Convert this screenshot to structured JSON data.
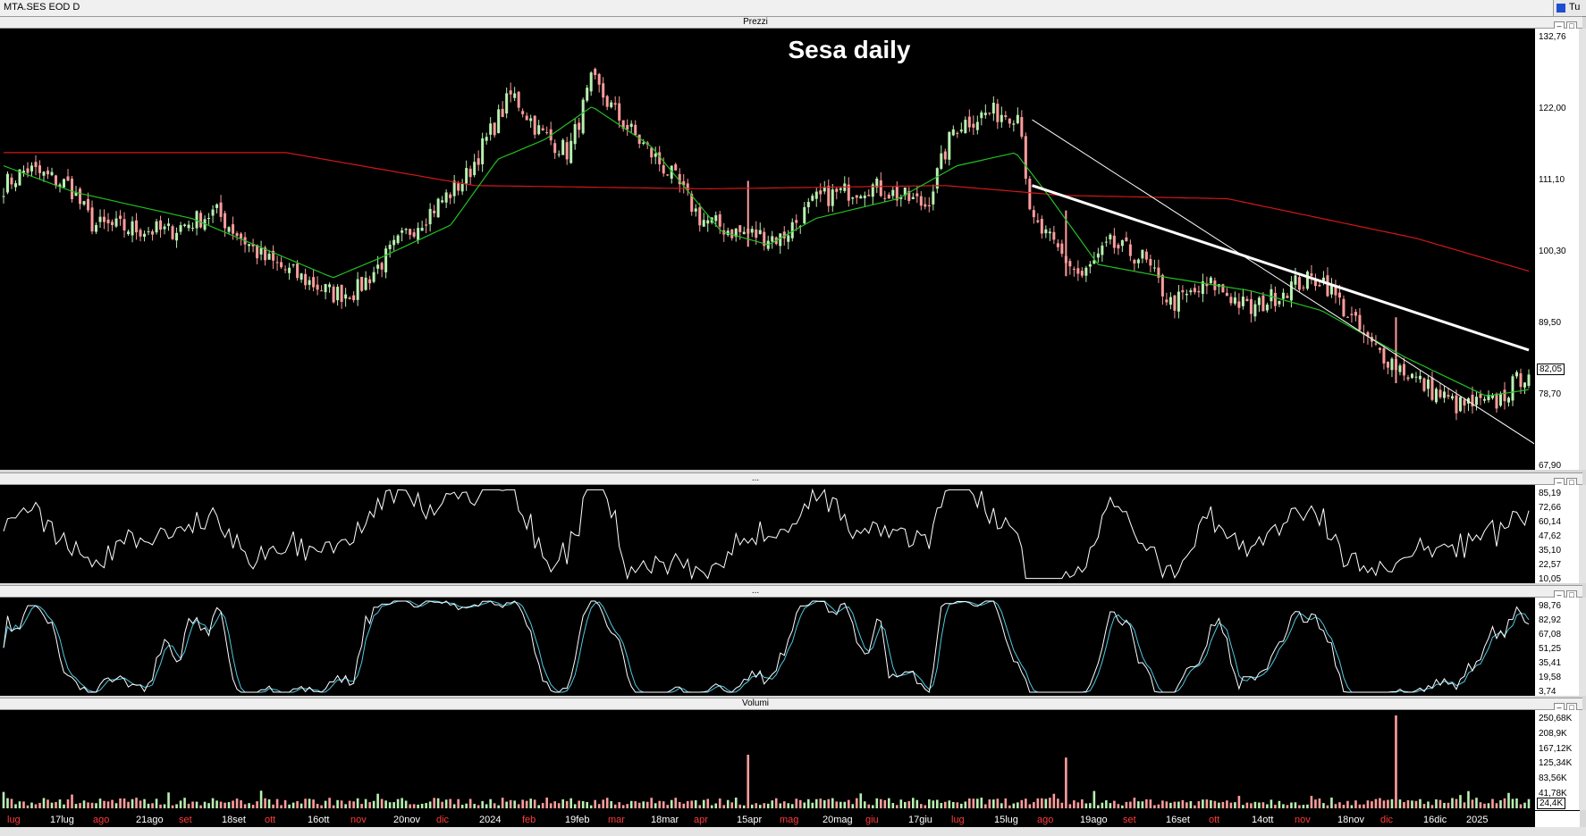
{
  "window": {
    "title": "MTA.SES EOD D",
    "corner_label": "Tu"
  },
  "chart_title": "Sesa daily",
  "panels": {
    "price": {
      "label": "Prezzi",
      "ticks": [
        "132,76",
        "122,00",
        "111,10",
        "100,30",
        "89,50",
        "78,70",
        "67,90"
      ],
      "last": "82,05"
    },
    "rsi": {
      "label": "...",
      "ticks": [
        "85,19",
        "72,66",
        "60,14",
        "47,62",
        "35,10",
        "22,57",
        "10,05"
      ]
    },
    "stoch": {
      "label": "...",
      "ticks": [
        "98,76",
        "82,92",
        "67,08",
        "51,25",
        "35,41",
        "19,58",
        "3,74"
      ]
    },
    "volume": {
      "label": "Volumi",
      "ticks": [
        "250,68K",
        "208,9K",
        "167,12K",
        "125,34K",
        "83,56K",
        "41,78K"
      ],
      "last": "24,4K"
    }
  },
  "xaxis_labels": [
    {
      "text": "lug",
      "color": "#ff3b3b"
    },
    {
      "text": "17lug",
      "color": "#ffffff"
    },
    {
      "text": "ago",
      "color": "#ff3b3b"
    },
    {
      "text": "21ago",
      "color": "#ffffff"
    },
    {
      "text": "set",
      "color": "#ff3b3b"
    },
    {
      "text": "18set",
      "color": "#ffffff"
    },
    {
      "text": "ott",
      "color": "#ff3b3b"
    },
    {
      "text": "16ott",
      "color": "#ffffff"
    },
    {
      "text": "nov",
      "color": "#ff3b3b"
    },
    {
      "text": "20nov",
      "color": "#ffffff"
    },
    {
      "text": "dic",
      "color": "#ff3b3b"
    },
    {
      "text": "2024",
      "color": "#ffffff"
    },
    {
      "text": "feb",
      "color": "#ff3b3b"
    },
    {
      "text": "19feb",
      "color": "#ffffff"
    },
    {
      "text": "mar",
      "color": "#ff3b3b"
    },
    {
      "text": "18mar",
      "color": "#ffffff"
    },
    {
      "text": "apr",
      "color": "#ff3b3b"
    },
    {
      "text": "15apr",
      "color": "#ffffff"
    },
    {
      "text": "mag",
      "color": "#ff3b3b"
    },
    {
      "text": "20mag",
      "color": "#ffffff"
    },
    {
      "text": "giu",
      "color": "#ff3b3b"
    },
    {
      "text": "17giu",
      "color": "#ffffff"
    },
    {
      "text": "lug",
      "color": "#ff3b3b"
    },
    {
      "text": "15lug",
      "color": "#ffffff"
    },
    {
      "text": "ago",
      "color": "#ff3b3b"
    },
    {
      "text": "19ago",
      "color": "#ffffff"
    },
    {
      "text": "set",
      "color": "#ff3b3b"
    },
    {
      "text": "16set",
      "color": "#ffffff"
    },
    {
      "text": "ott",
      "color": "#ff3b3b"
    },
    {
      "text": "14ott",
      "color": "#ffffff"
    },
    {
      "text": "nov",
      "color": "#ff3b3b"
    },
    {
      "text": "18nov",
      "color": "#ffffff"
    },
    {
      "text": "dic",
      "color": "#ff3b3b"
    },
    {
      "text": "16dic",
      "color": "#ffffff"
    },
    {
      "text": "2025",
      "color": "#ffffff"
    }
  ],
  "colors": {
    "up": "#b8f0b0",
    "down": "#ff9c9c",
    "ma_short": "#22c022",
    "ma_long": "#d01818",
    "trendline": "#ffffff",
    "stoch_k": "#ffffff",
    "stoch_d": "#4fc8e0",
    "rsi": "#ffffff"
  },
  "chart_data": {
    "type": "candlestick",
    "sessions": 380,
    "ylim": [
      67.9,
      132.76
    ],
    "close_anchors": [
      [
        0,
        110
      ],
      [
        10,
        112.5
      ],
      [
        28,
        110
      ],
      [
        38,
        104
      ],
      [
        70,
        103
      ],
      [
        90,
        106
      ],
      [
        110,
        99
      ],
      [
        140,
        93.5
      ],
      [
        150,
        94
      ],
      [
        172,
        103
      ],
      [
        196,
        111
      ],
      [
        216,
        124
      ],
      [
        228,
        118
      ],
      [
        240,
        115
      ],
      [
        250,
        126
      ],
      [
        262,
        120
      ],
      [
        285,
        111
      ],
      [
        296,
        105
      ],
      [
        310,
        103
      ],
      [
        330,
        102
      ],
      [
        346,
        108
      ],
      [
        368,
        110
      ],
      [
        392,
        107
      ],
      [
        404,
        119
      ],
      [
        418,
        121
      ],
      [
        432,
        121
      ],
      [
        436,
        105
      ],
      [
        458,
        96
      ],
      [
        470,
        101
      ],
      [
        484,
        99
      ],
      [
        496,
        92
      ],
      [
        514,
        95
      ],
      [
        530,
        91
      ],
      [
        548,
        95
      ],
      [
        560,
        96
      ],
      [
        580,
        86
      ],
      [
        604,
        79.5
      ],
      [
        618,
        76.5
      ],
      [
        634,
        77
      ],
      [
        648,
        82.05
      ]
    ],
    "ma_short_anchors": [
      [
        0,
        113
      ],
      [
        30,
        109
      ],
      [
        80,
        105
      ],
      [
        140,
        96
      ],
      [
        160,
        99
      ],
      [
        190,
        104
      ],
      [
        210,
        114
      ],
      [
        230,
        117
      ],
      [
        250,
        122
      ],
      [
        275,
        116
      ],
      [
        305,
        103
      ],
      [
        325,
        101
      ],
      [
        345,
        105
      ],
      [
        380,
        108
      ],
      [
        405,
        113
      ],
      [
        430,
        115
      ],
      [
        445,
        108
      ],
      [
        465,
        98
      ],
      [
        495,
        96
      ],
      [
        530,
        94
      ],
      [
        560,
        91
      ],
      [
        595,
        84
      ],
      [
        630,
        78
      ],
      [
        648,
        79
      ]
    ],
    "ma_long_anchors": [
      [
        0,
        115
      ],
      [
        120,
        115
      ],
      [
        200,
        110
      ],
      [
        300,
        109.5
      ],
      [
        400,
        110
      ],
      [
        450,
        108.5
      ],
      [
        520,
        108
      ],
      [
        600,
        102
      ],
      [
        648,
        97
      ]
    ],
    "trendlines": [
      {
        "from": [
          437,
          110
        ],
        "to": [
          648,
          85
        ]
      },
      {
        "from": [
          437,
          120
        ],
        "to": [
          658,
          69
        ]
      }
    ],
    "volume_spikes": [
      [
        316,
        150000
      ],
      [
        451,
        142000
      ],
      [
        591,
        260000
      ]
    ],
    "volume_ylim": [
      0,
      260000
    ],
    "rsi_ylim": [
      10.05,
      85.19
    ],
    "stoch_ylim": [
      3.74,
      98.76
    ]
  }
}
